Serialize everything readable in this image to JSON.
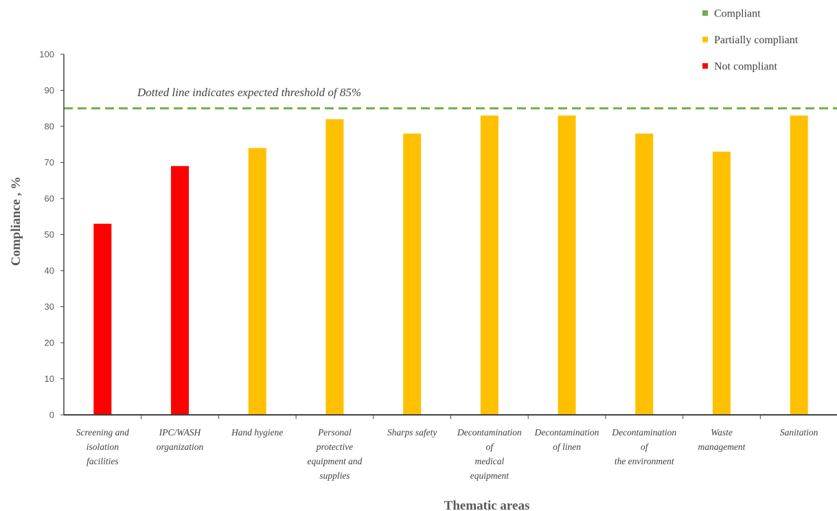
{
  "chart_data": {
    "type": "bar",
    "xlabel": "Thematic areas",
    "ylabel": "Compliance , %",
    "ylim": [
      0,
      100
    ],
    "yticks": [
      0,
      10,
      20,
      30,
      40,
      50,
      60,
      70,
      80,
      90,
      100
    ],
    "grid": false,
    "legend_position": "top-right",
    "categories": [
      [
        "Screening and",
        "isolation",
        "facilities"
      ],
      [
        "IPC/WASH",
        "organization"
      ],
      [
        "Hand hygiene"
      ],
      [
        "Personal",
        "protective",
        "equipment and",
        "supplies"
      ],
      [
        "Sharps safety"
      ],
      [
        "Decontamination",
        "of",
        "medical",
        "equipment"
      ],
      [
        "Decontamination",
        "of linen"
      ],
      [
        "Decontamination",
        "of",
        "the environment"
      ],
      [
        "Waste",
        "management"
      ],
      [
        "Sanitation"
      ]
    ],
    "values": [
      53,
      69,
      74,
      82,
      78,
      83,
      83,
      78,
      73,
      83
    ],
    "bar_status": [
      "Not compliant",
      "Not compliant",
      "Partially compliant",
      "Partially compliant",
      "Partially compliant",
      "Partially compliant",
      "Partially compliant",
      "Partially compliant",
      "Partially compliant",
      "Partially compliant"
    ],
    "threshold": 85,
    "threshold_note": "Dotted line indicates expected threshold of 85%",
    "legend": [
      {
        "label": "Compliant",
        "color": "#70ad47"
      },
      {
        "label": "Partially compliant",
        "color": "#ffc000"
      },
      {
        "label": "Not compliant",
        "color": "#ff0000"
      }
    ],
    "colors": {
      "Compliant": "#70ad47",
      "Partially compliant": "#ffc000",
      "Not compliant": "#ff0000"
    }
  }
}
